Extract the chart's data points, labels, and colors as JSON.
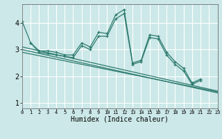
{
  "xlabel": "Humidex (Indice chaleur)",
  "background_color": "#cce8e8",
  "grid_color": "#ffffff",
  "line_color": "#2d7a6e",
  "xlim": [
    0,
    23
  ],
  "ylim": [
    0.8,
    4.7
  ],
  "yticks": [
    1,
    2,
    3,
    4
  ],
  "xticks": [
    0,
    1,
    2,
    3,
    4,
    5,
    6,
    7,
    8,
    9,
    10,
    11,
    12,
    13,
    14,
    15,
    16,
    17,
    18,
    19,
    20,
    21,
    22,
    23
  ],
  "series": [
    {
      "x": [
        0,
        1,
        2,
        3,
        4,
        5,
        6,
        7,
        8,
        9,
        10,
        11,
        12,
        13,
        14,
        15,
        16,
        17,
        18,
        19,
        20,
        21
      ],
      "y": [
        4.05,
        3.25,
        2.95,
        2.95,
        2.9,
        2.8,
        2.8,
        3.25,
        3.1,
        3.65,
        3.6,
        4.3,
        4.5,
        2.5,
        2.6,
        3.55,
        3.5,
        2.9,
        2.55,
        2.3,
        1.75,
        1.9
      ],
      "marker": true
    },
    {
      "x": [
        1,
        2,
        3,
        4,
        5,
        6,
        7,
        8,
        9,
        10,
        11,
        12,
        13,
        14,
        15,
        16,
        17,
        18,
        19,
        20,
        21
      ],
      "y": [
        3.25,
        2.9,
        2.85,
        2.8,
        2.75,
        2.7,
        3.15,
        3.0,
        3.5,
        3.5,
        4.15,
        4.35,
        2.45,
        2.55,
        3.45,
        3.4,
        2.8,
        2.45,
        2.2,
        1.7,
        1.85
      ],
      "marker": true
    },
    {
      "x": [
        0,
        23
      ],
      "y": [
        3.1,
        1.45
      ],
      "marker": false
    },
    {
      "x": [
        0,
        23
      ],
      "y": [
        3.0,
        1.38
      ],
      "marker": false
    },
    {
      "x": [
        0,
        23
      ],
      "y": [
        2.9,
        1.42
      ],
      "marker": false
    }
  ]
}
